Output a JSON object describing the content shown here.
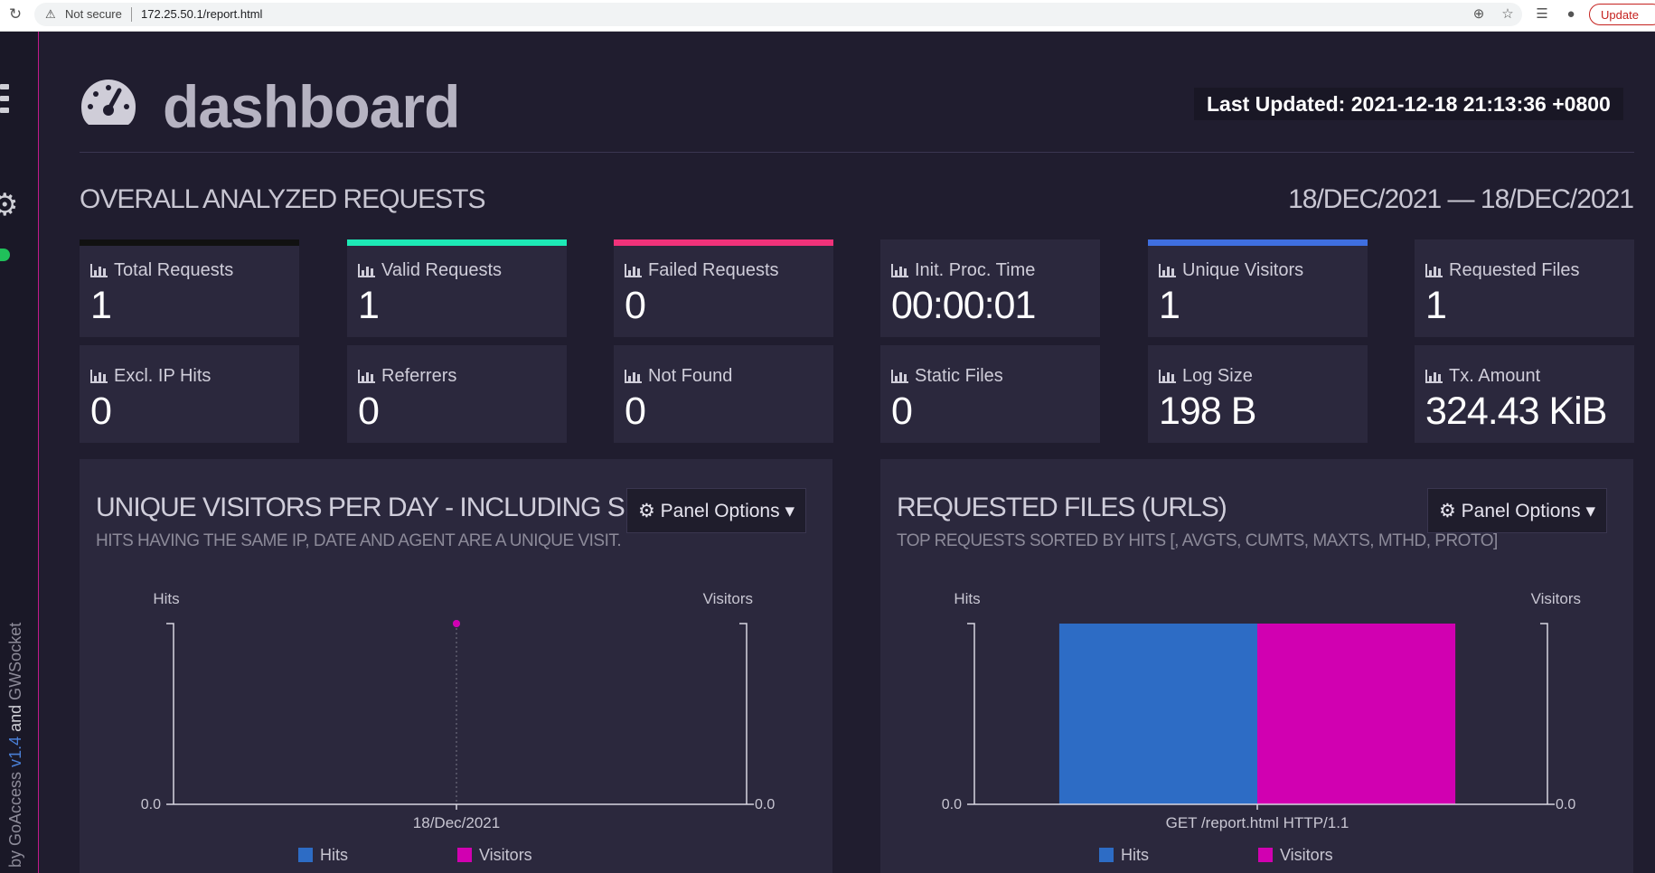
{
  "browser": {
    "security_label": "Not secure",
    "url": "172.25.50.1/report.html",
    "update_label": "Update"
  },
  "sidebar": {
    "credits_by": "by",
    "credits_app": "GoAccess",
    "credits_version": "v1.4",
    "credits_and": "and",
    "credits_lib": "GWSocket"
  },
  "header": {
    "title": "dashboard",
    "last_updated": "Last Updated: 2021-12-18 21:13:36 +0800"
  },
  "overall": {
    "title": "OVERALL ANALYZED REQUESTS",
    "date_range": "18/DEC/2021 — 18/DEC/2021",
    "metrics": [
      {
        "label": "Total Requests",
        "value": "1",
        "accent": "#111111"
      },
      {
        "label": "Valid Requests",
        "value": "1",
        "accent": "#1de9b6"
      },
      {
        "label": "Failed Requests",
        "value": "0",
        "accent": "#f0327a"
      },
      {
        "label": "Init. Proc. Time",
        "value": "00:00:01",
        "accent": "#2b283d"
      },
      {
        "label": "Unique Visitors",
        "value": "1",
        "accent": "#3f6fe0"
      },
      {
        "label": "Requested Files",
        "value": "1",
        "accent": "#2b283d"
      },
      {
        "label": "Excl. IP Hits",
        "value": "0",
        "accent": "#2b283d"
      },
      {
        "label": "Referrers",
        "value": "0",
        "accent": "#2b283d"
      },
      {
        "label": "Not Found",
        "value": "0",
        "accent": "#2b283d"
      },
      {
        "label": "Static Files",
        "value": "0",
        "accent": "#2b283d"
      },
      {
        "label": "Log Size",
        "value": "198 B",
        "accent": "#2b283d"
      },
      {
        "label": "Tx. Amount",
        "value": "324.43 KiB",
        "accent": "#2b283d"
      }
    ]
  },
  "panels": [
    {
      "title": "UNIQUE VISITORS PER DAY - INCLUDING S",
      "subtitle": "HITS HAVING THE SAME IP, DATE AND AGENT ARE A UNIQUE VISIT.",
      "options_label": "Panel Options"
    },
    {
      "title": "REQUESTED FILES (URLS)",
      "subtitle": "TOP REQUESTS SORTED BY HITS [, AVGTS, CUMTS, MAXTS, MTHD, PROTO]",
      "options_label": "Panel Options"
    }
  ],
  "colors": {
    "hits": "#2d6cc5",
    "visitors": "#d100b1"
  },
  "chart_data": [
    {
      "type": "line",
      "title": "UNIQUE VISITORS PER DAY - INCLUDING S",
      "categories": [
        "18/Dec/2021"
      ],
      "series": [
        {
          "name": "Hits",
          "values": [
            1
          ]
        },
        {
          "name": "Visitors",
          "values": [
            1
          ]
        }
      ],
      "ylabel_left": "Hits",
      "ylabel_right": "Visitors",
      "y_tick_left": "0.0",
      "y_tick_right": "0.0",
      "legend": [
        "Hits",
        "Visitors"
      ]
    },
    {
      "type": "bar",
      "title": "REQUESTED FILES (URLS)",
      "categories": [
        "GET /report.html HTTP/1.1"
      ],
      "series": [
        {
          "name": "Hits",
          "values": [
            1
          ]
        },
        {
          "name": "Visitors",
          "values": [
            1
          ]
        }
      ],
      "ylabel_left": "Hits",
      "ylabel_right": "Visitors",
      "y_tick_left": "0.0",
      "y_tick_right": "0.0",
      "legend": [
        "Hits",
        "Visitors"
      ]
    }
  ]
}
